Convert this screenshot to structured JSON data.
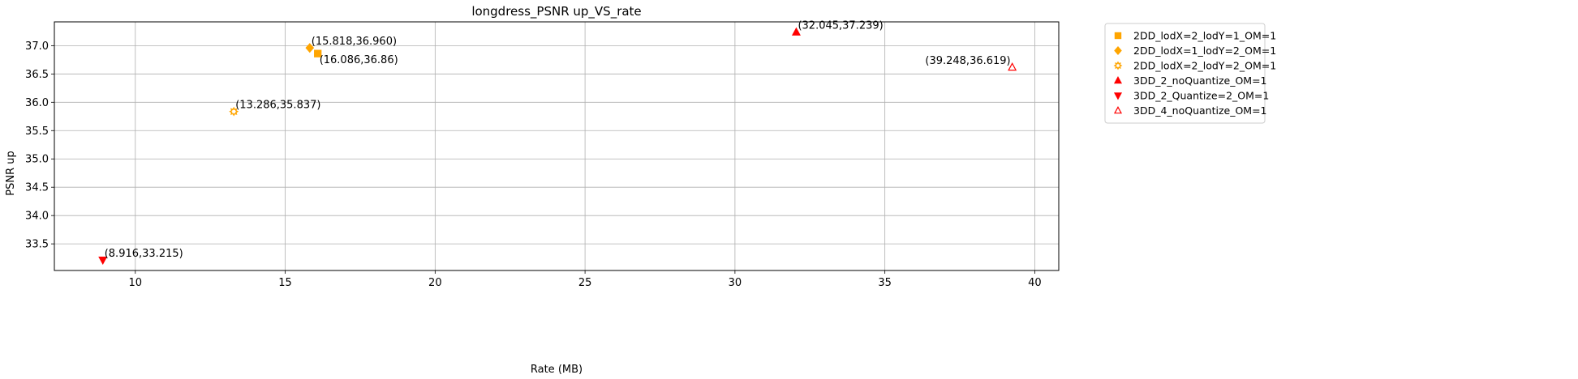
{
  "chart_data": {
    "type": "scatter",
    "title": "longdress_PSNR up_VS_rate",
    "xlabel": "Rate (MB)",
    "ylabel": "PSNR up",
    "xlim": [
      7.3,
      40.8
    ],
    "ylim": [
      33.03,
      37.42
    ],
    "xticks": [
      10,
      15,
      20,
      25,
      30,
      35,
      40
    ],
    "xtick_labels": [
      "10",
      "15",
      "20",
      "25",
      "30",
      "35",
      "40"
    ],
    "yticks": [
      33.5,
      34.0,
      34.5,
      35.0,
      35.5,
      36.0,
      36.5,
      37.0
    ],
    "ytick_labels": [
      "33.5",
      "34.0",
      "34.5",
      "35.0",
      "35.5",
      "36.0",
      "36.5",
      "37.0"
    ],
    "grid": true,
    "legend_position": "outside-top-right",
    "series": [
      {
        "name": "2DD_lodX=2_lodY=1_OM=1",
        "marker": "square",
        "color": "#FFA500",
        "filled": true,
        "x": 16.086,
        "y": 36.86,
        "label": "(16.086,36.86)",
        "label_anchor": "below-right"
      },
      {
        "name": "2DD_lodX=1_lodY=2_OM=1",
        "marker": "diamond",
        "color": "#FFA500",
        "filled": true,
        "x": 15.818,
        "y": 36.96,
        "label": "(15.818,36.960)",
        "label_anchor": "above-right"
      },
      {
        "name": "2DD_lodX=2_lodY=2_OM=1",
        "marker": "gear",
        "color": "#FFA500",
        "filled": false,
        "x": 13.286,
        "y": 35.837,
        "label": "(13.286,35.837)",
        "label_anchor": "above-right"
      },
      {
        "name": "3DD_2_noQuantize_OM=1",
        "marker": "triangle-up",
        "color": "#FF0000",
        "filled": true,
        "x": 32.045,
        "y": 37.239,
        "label": "(32.045,37.239)",
        "label_anchor": "above-right"
      },
      {
        "name": "3DD_2_Quantize=2_OM=1",
        "marker": "triangle-down",
        "color": "#FF0000",
        "filled": true,
        "x": 8.916,
        "y": 33.215,
        "label": "(8.916,33.215)",
        "label_anchor": "above-right"
      },
      {
        "name": "3DD_4_noQuantize_OM=1",
        "marker": "triangle-up",
        "color": "#FF0000",
        "filled": false,
        "x": 39.248,
        "y": 36.619,
        "label": "(39.248,36.619)",
        "label_anchor": "above-left"
      }
    ]
  }
}
